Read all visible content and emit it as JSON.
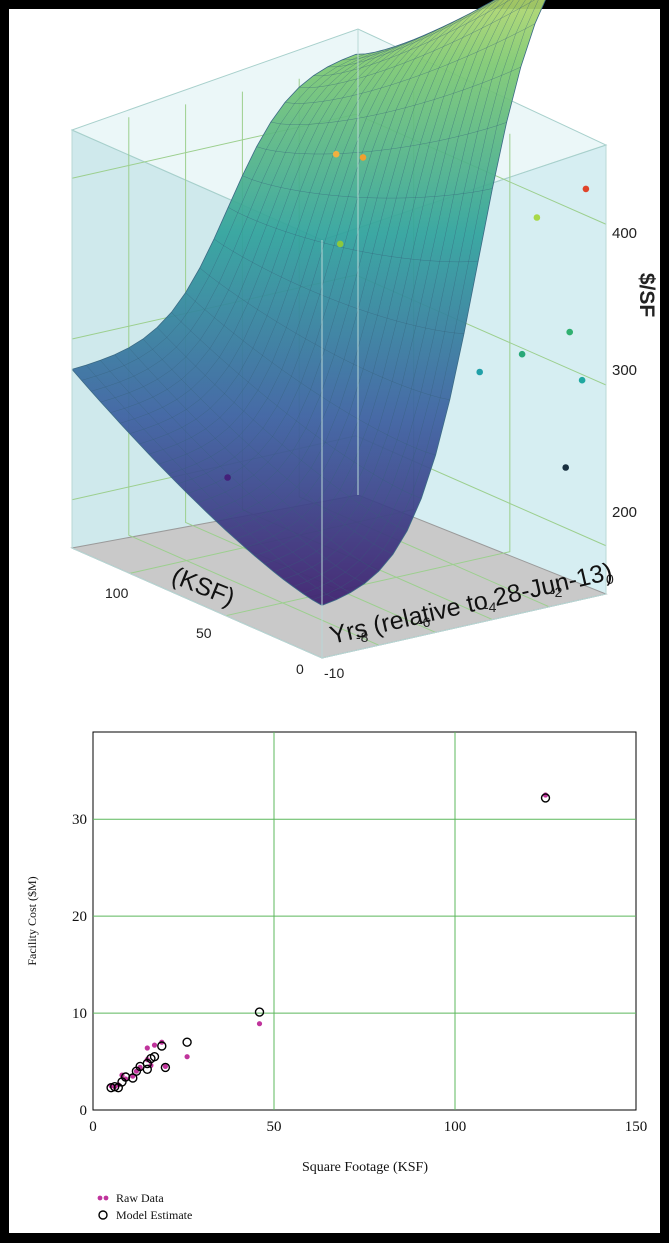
{
  "chart_data": [
    {
      "type": "surface3d",
      "zlabel": "$/SF",
      "y_axis_label": "Yrs (relative to 28-Jun-13)",
      "x_axis_label": "(KSF)",
      "z_ticks": [
        "400",
        "300",
        "200"
      ],
      "yr_ticks": [
        "0",
        "-2",
        "-4",
        "-6",
        "-8",
        "-10"
      ],
      "ksf_ticks": [
        "100",
        "50",
        "0"
      ],
      "xlim": [
        0,
        130
      ],
      "ylim": [
        -10,
        0
      ],
      "zlim": [
        170,
        430
      ],
      "points": [
        {
          "x": 6,
          "y": -0.3,
          "z": 420,
          "color": "#e0442a"
        },
        {
          "x": 85,
          "y": -2.8,
          "z": 408,
          "color": "#f0a030"
        },
        {
          "x": 96,
          "y": -3.0,
          "z": 405,
          "color": "#f0b040"
        },
        {
          "x": 30,
          "y": -0.4,
          "z": 390,
          "color": "#a8d848"
        },
        {
          "x": 88,
          "y": -3.4,
          "z": 355,
          "color": "#8cc83c"
        },
        {
          "x": 10,
          "y": -0.6,
          "z": 330,
          "color": "#30b070"
        },
        {
          "x": 20,
          "y": -1.6,
          "z": 315,
          "color": "#28a878"
        },
        {
          "x": 8,
          "y": -0.3,
          "z": 300,
          "color": "#20a8a0"
        },
        {
          "x": 45,
          "y": -1.4,
          "z": 290,
          "color": "#20a0a8"
        },
        {
          "x": 18,
          "y": -0.2,
          "z": 240,
          "color": "#183040"
        },
        {
          "x": 120,
          "y": -5.2,
          "z": 200,
          "color": "#44207a"
        }
      ]
    },
    {
      "type": "scatter",
      "xlabel": "Square Footage (KSF)",
      "ylabel": "Facility Cost ($M)",
      "xlim": [
        0,
        150
      ],
      "ylim": [
        0,
        39
      ],
      "x_ticks": [
        "0",
        "50",
        "100",
        "150"
      ],
      "y_ticks": [
        "0",
        "10",
        "20",
        "30"
      ],
      "grid": true,
      "legend": "bottom-left",
      "series": [
        {
          "name": "Raw Data",
          "color": "#c0349c",
          "marker": "filled-dot",
          "points": [
            [
              5,
              2.5
            ],
            [
              6,
              2.4
            ],
            [
              7,
              2.6
            ],
            [
              8,
              3.6
            ],
            [
              9,
              3.2
            ],
            [
              11,
              3.5
            ],
            [
              12,
              4.0
            ],
            [
              13,
              4.4
            ],
            [
              15,
              5.2
            ],
            [
              15,
              6.4
            ],
            [
              16,
              4.6
            ],
            [
              17,
              6.7
            ],
            [
              19,
              7.0
            ],
            [
              20,
              4.5
            ],
            [
              26,
              5.5
            ],
            [
              46,
              8.9
            ],
            [
              125,
              32.5
            ]
          ]
        },
        {
          "name": "Model Estimate",
          "color": "#000000",
          "marker": "open-circle",
          "points": [
            [
              5,
              2.3
            ],
            [
              6,
              2.4
            ],
            [
              7,
              2.3
            ],
            [
              8,
              2.9
            ],
            [
              9,
              3.4
            ],
            [
              11,
              3.3
            ],
            [
              12,
              4.0
            ],
            [
              13,
              4.5
            ],
            [
              15,
              4.2
            ],
            [
              15,
              4.8
            ],
            [
              16,
              5.3
            ],
            [
              17,
              5.5
            ],
            [
              19,
              6.6
            ],
            [
              20,
              4.4
            ],
            [
              26,
              7.0
            ],
            [
              46,
              10.1
            ],
            [
              125,
              32.2
            ]
          ]
        }
      ]
    }
  ]
}
